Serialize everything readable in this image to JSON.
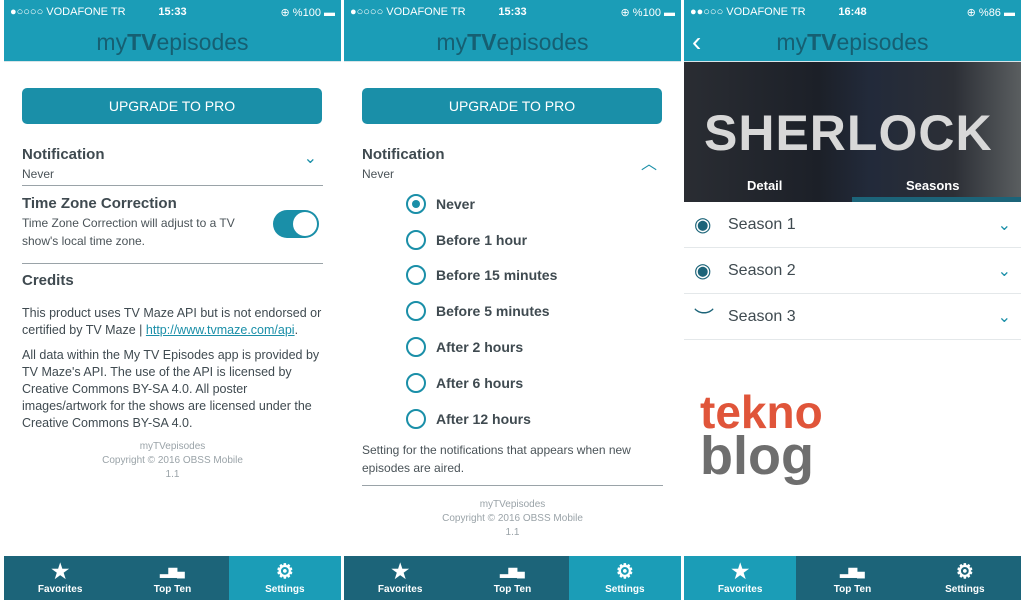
{
  "screens": [
    {
      "status": {
        "carrier": "●○○○○ VODAFONE TR",
        "time": "15:33",
        "battery": "⊕ %100 ▬"
      }
    },
    {
      "status": {
        "carrier": "●○○○○ VODAFONE TR",
        "time": "15:33",
        "battery": "⊕ %100 ▬"
      }
    },
    {
      "status": {
        "carrier": "●●○○○ VODAFONE TR",
        "time": "16:48",
        "battery": "⊕ %86 ▬"
      }
    }
  ],
  "logo": {
    "pre": "my",
    "bold": "TV",
    "post": "episodes"
  },
  "settings": {
    "upgrade": "UPGRADE TO PRO",
    "notification_title": "Notification",
    "notification_value": "Never",
    "tz_title": "Time Zone Correction",
    "tz_desc": "Time Zone Correction will adjust to a TV show's local time zone.",
    "tz_enabled": true,
    "credits_title": "Credits",
    "credits_p1": "This product uses TV Maze API but is not endorsed or certified by TV Maze | ",
    "credits_link": "http://www.tvmaze.com/api",
    "credits_p1_end": ".",
    "credits_p2": "All data within the My TV Episodes app is provided by TV Maze's API. The use of the API is licensed by Creative Commons BY-SA 4.0. All poster images/artwork for the shows are licensed under the Creative Commons BY-SA 4.0.",
    "footer_logo": "myTVepisodes",
    "copyright": "Copyright © 2016 OBSS Mobile",
    "version": "1.1",
    "options": [
      "Never",
      "Before 1 hour",
      "Before 15 minutes",
      "Before 5 minutes",
      "After 2 hours",
      "After 6 hours",
      "After 12 hours"
    ],
    "selected": "Never",
    "options_note": "Setting for the notifications that appears when new episodes are aired."
  },
  "tabs": [
    {
      "label": "Favorites",
      "icon": "★"
    },
    {
      "label": "Top Ten",
      "icon": "podium"
    },
    {
      "label": "Settings",
      "icon": "⚙"
    }
  ],
  "show": {
    "title": "SHERLOCK",
    "tab_detail": "Detail",
    "tab_seasons": "Seasons",
    "seasons": [
      {
        "label": "Season 1",
        "watched": true
      },
      {
        "label": "Season 2",
        "watched": true
      },
      {
        "label": "Season 3",
        "watched": false
      }
    ]
  },
  "watermark": {
    "line1": "tekno",
    "line2": "blog"
  },
  "colors": {
    "header": "#1b9db7",
    "tabbar": "#1c6479",
    "accent": "#1a8fa8"
  }
}
